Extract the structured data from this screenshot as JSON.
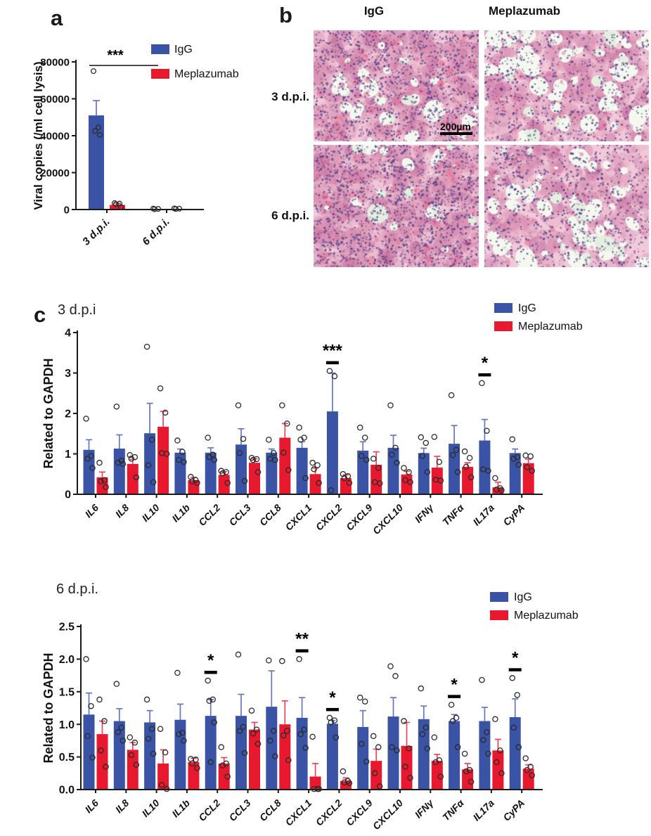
{
  "panels": {
    "a": {
      "label": "a"
    },
    "b": {
      "label": "b",
      "col_headers": [
        "IgG",
        "Meplazumab"
      ],
      "row_labels": [
        "3 d.p.i.",
        "6 d.p.i."
      ],
      "scale_bar_label": "200µm",
      "images": [
        {
          "group": "IgG",
          "timepoint": "3 d.p.i."
        },
        {
          "group": "Meplazumab",
          "timepoint": "3 d.p.i."
        },
        {
          "group": "IgG",
          "timepoint": "6 d.p.i."
        },
        {
          "group": "Meplazumab",
          "timepoint": "6 d.p.i."
        }
      ]
    },
    "c": {
      "label": "c"
    }
  },
  "colors": {
    "igg": "#3a53a4",
    "meplazumab": "#e8192e",
    "igg_error": "#6576c4",
    "meplazumab_error": "#f0435a",
    "axis": "#1a1a1a",
    "point_stroke": "#2b2b2b",
    "histology": {
      "base": "#f2c9d8",
      "white": "#f4f8ef",
      "mint": "#e4efdf",
      "pink": "#db8fb0",
      "deep_pink": "#c2679c",
      "nuclei": "#5a4488",
      "red": "#e86a92"
    }
  },
  "chart_data": [
    {
      "id": "chart-a",
      "type": "bar",
      "title": "",
      "xlabel": "",
      "ylabel": "Viral copies (/ml cell lysis)",
      "ylim": [
        0,
        80000
      ],
      "yticks": [
        0,
        20000,
        40000,
        60000,
        80000
      ],
      "ytick_labels": [
        "0",
        "20000",
        "40000",
        "60000",
        "80000"
      ],
      "grid": false,
      "legend_position": "top-right",
      "categories": [
        "3 d.p.i.",
        "6 d.p.i."
      ],
      "series": [
        {
          "name": "IgG",
          "color": "#3a53a4",
          "error_color": "#6576c4",
          "values": [
            51000,
            350
          ],
          "errors": [
            8000,
            150
          ],
          "points": [
            [
              75000,
              44500,
              42500,
              40500
            ],
            [
              500,
              350,
              200
            ]
          ]
        },
        {
          "name": "Meplazumab",
          "color": "#e8192e",
          "error_color": "#f0435a",
          "values": [
            2500,
            400
          ],
          "errors": [
            900,
            200
          ],
          "points": [
            [
              3500,
              3200,
              2900,
              1400
            ],
            [
              600,
              450,
              300
            ]
          ]
        }
      ],
      "significance": [
        {
          "category": "3 d.p.i.",
          "label": "***",
          "style": "pair-line"
        }
      ]
    },
    {
      "id": "chart-c1",
      "type": "bar",
      "title": "3 d.p.i",
      "xlabel": "",
      "ylabel": "Related to GAPDH",
      "ylim": [
        0,
        4
      ],
      "yticks": [
        0,
        1,
        2,
        3,
        4
      ],
      "ytick_labels": [
        "0",
        "1",
        "2",
        "3",
        "4"
      ],
      "grid": false,
      "legend_position": "top-right",
      "categories": [
        "IL6",
        "IL8",
        "IL10",
        "IL1b",
        "CCL2",
        "CCL3",
        "CCL8",
        "CXCL1",
        "CXCL2",
        "CXCL9",
        "CXCL10",
        "IFNγ",
        "TNFα",
        "IL17a",
        "CyPA"
      ],
      "series": [
        {
          "name": "IgG",
          "color": "#3a53a4",
          "error_color": "#6576c4",
          "values": [
            1.1,
            1.13,
            1.51,
            1.03,
            1.03,
            1.23,
            1.03,
            1.15,
            2.05,
            1.08,
            1.15,
            1.02,
            1.25,
            1.33,
            1.02
          ],
          "errors": [
            0.25,
            0.34,
            0.74,
            0.09,
            0.12,
            0.39,
            0.09,
            0.15,
            0.95,
            0.22,
            0.31,
            0.12,
            0.45,
            0.52,
            0.1
          ],
          "points": [
            [
              1.87,
              0.95,
              0.88,
              0.65
            ],
            [
              2.17,
              0.83,
              0.78,
              0.75
            ],
            [
              3.65,
              1.35,
              0.72,
              0.3
            ],
            [
              1.33,
              1.05,
              0.85,
              0.8
            ],
            [
              1.4,
              0.98,
              0.92,
              0.85
            ],
            [
              2.2,
              1.37,
              1.02,
              0.33
            ],
            [
              1.35,
              1.02,
              0.88,
              0.85
            ],
            [
              1.65,
              1.4,
              1.35,
              0.4
            ],
            [
              3.05,
              2.92,
              0.1
            ],
            [
              1.65,
              1.4,
              0.95,
              0.85
            ],
            [
              2.2,
              1.15,
              0.98,
              0.78
            ],
            [
              1.41,
              1.27,
              0.95,
              0.55
            ],
            [
              2.45,
              1.1,
              0.97,
              0.55
            ],
            [
              2.75,
              1.57,
              0.62,
              0.58
            ],
            [
              1.36,
              0.92,
              0.88,
              0.73
            ]
          ]
        },
        {
          "name": "Meplazumab",
          "color": "#e8192e",
          "error_color": "#f0435a",
          "values": [
            0.42,
            0.75,
            1.67,
            0.35,
            0.48,
            0.78,
            1.4,
            0.5,
            0.4,
            0.73,
            0.49,
            0.66,
            0.68,
            0.17,
            0.77
          ],
          "errors": [
            0.13,
            0.11,
            0.38,
            0.07,
            0.08,
            0.1,
            0.35,
            0.15,
            0.08,
            0.32,
            0.08,
            0.28,
            0.1,
            0.13,
            0.1
          ],
          "points": [
            [
              0.78,
              0.35,
              0.32,
              0.18
            ],
            [
              0.97,
              0.92,
              0.88,
              0.42
            ],
            [
              2.62,
              2.02,
              1.02,
              1.0
            ],
            [
              0.43,
              0.35,
              0.32,
              0.28
            ],
            [
              0.58,
              0.55,
              0.52,
              0.28
            ],
            [
              0.9,
              0.87,
              0.85,
              0.55
            ],
            [
              2.2,
              1.75,
              1.03,
              0.6
            ],
            [
              0.78,
              0.72,
              0.62,
              0.28
            ],
            [
              0.5,
              0.45,
              0.4,
              0.28
            ],
            [
              0.88,
              0.65,
              0.3,
              0.27
            ],
            [
              0.65,
              0.55,
              0.35,
              0.3
            ],
            [
              1.42,
              0.8,
              0.36,
              0.34
            ],
            [
              1.06,
              0.9,
              0.68,
              0.42
            ],
            [
              0.4,
              0.15,
              0.12,
              0.1
            ],
            [
              0.96,
              0.94,
              0.67,
              0.58
            ]
          ]
        }
      ],
      "significance": [
        {
          "category": "CXCL2",
          "label": "***",
          "style": "dash"
        },
        {
          "category": "IL17a",
          "label": "*",
          "style": "dash"
        }
      ]
    },
    {
      "id": "chart-c2",
      "type": "bar",
      "title": "6 d.p.i.",
      "xlabel": "",
      "ylabel": "Related to GAPDH",
      "ylim": [
        0,
        2.5
      ],
      "yticks": [
        0,
        0.5,
        1.0,
        1.5,
        2.0,
        2.5
      ],
      "ytick_labels": [
        "0.0",
        "0.5",
        "1.0",
        "1.5",
        "2.0",
        "2.5"
      ],
      "grid": false,
      "legend_position": "top-right",
      "categories": [
        "IL6",
        "IL8",
        "IL10",
        "IL1b",
        "CCL2",
        "CCL3",
        "CCL8",
        "CXCL1",
        "CXCL2",
        "CXCL9",
        "CXCL10",
        "IFNγ",
        "TNFα",
        "IL17a",
        "CyPA"
      ],
      "series": [
        {
          "name": "IgG",
          "color": "#3a53a4",
          "error_color": "#6576c4",
          "values": [
            1.15,
            1.05,
            1.03,
            1.07,
            1.13,
            1.13,
            1.27,
            1.1,
            1.01,
            0.96,
            1.12,
            1.08,
            1.05,
            1.05,
            1.11
          ],
          "errors": [
            0.33,
            0.19,
            0.18,
            0.24,
            0.25,
            0.33,
            0.55,
            0.31,
            0.05,
            0.25,
            0.29,
            0.2,
            0.1,
            0.21,
            0.28
          ],
          "points": [
            [
              2.0,
              1.28,
              0.82,
              0.49
            ],
            [
              1.62,
              0.95,
              0.88,
              0.75
            ],
            [
              1.38,
              0.93,
              0.78,
              0.55
            ],
            [
              1.79,
              0.87,
              0.85,
              0.75
            ],
            [
              1.67,
              1.38,
              1.36,
              1.03,
              0.42
            ],
            [
              2.07,
              0.96,
              0.9,
              0.56
            ],
            [
              1.98,
              0.9,
              0.75,
              0.51
            ],
            [
              2.0,
              0.92,
              0.85,
              0.64
            ],
            [
              1.1,
              1.06,
              1.03,
              0.8
            ],
            [
              1.41,
              1.35,
              0.7,
              0.43
            ],
            [
              1.89,
              1.74,
              0.65,
              0.6
            ],
            [
              1.55,
              0.95,
              0.85,
              0.63
            ],
            [
              1.3,
              1.1,
              1.05,
              0.65
            ],
            [
              1.68,
              0.88,
              0.76,
              0.55
            ],
            [
              1.71,
              1.45,
              0.95,
              0.65
            ]
          ]
        },
        {
          "name": "Meplazumab",
          "color": "#e8192e",
          "error_color": "#f0435a",
          "values": [
            0.85,
            0.61,
            0.4,
            0.42,
            0.4,
            0.92,
            1.0,
            0.2,
            0.13,
            0.44,
            0.67,
            0.44,
            0.31,
            0.6,
            0.32
          ],
          "errors": [
            0.2,
            0.11,
            0.21,
            0.06,
            0.09,
            0.11,
            0.36,
            0.2,
            0.05,
            0.18,
            0.36,
            0.1,
            0.09,
            0.17,
            0.06
          ],
          "points": [
            [
              1.38,
              1.05,
              0.6,
              0.35
            ],
            [
              0.8,
              0.72,
              0.53,
              0.38
            ],
            [
              0.93,
              0.57,
              0.07,
              0.01
            ],
            [
              0.47,
              0.46,
              0.4,
              0.33
            ],
            [
              0.65,
              0.4,
              0.37,
              0.2
            ],
            [
              1.21,
              0.92,
              0.86,
              0.7
            ],
            [
              1.97,
              0.9,
              0.83,
              0.45
            ],
            [
              0.81,
              0.01,
              0.01,
              0.01
            ],
            [
              0.28,
              0.13,
              0.11,
              0.1
            ],
            [
              0.82,
              0.65,
              0.25,
              0.05
            ],
            [
              1.05,
              0.63,
              0.35,
              0.18
            ],
            [
              0.8,
              0.45,
              0.42,
              0.2
            ],
            [
              0.55,
              0.3,
              0.28,
              0.12
            ],
            [
              1.08,
              0.6,
              0.42,
              0.25
            ],
            [
              0.48,
              0.35,
              0.3,
              0.22
            ]
          ]
        }
      ],
      "significance": [
        {
          "category": "CCL2",
          "label": "*",
          "style": "dash"
        },
        {
          "category": "CXCL1",
          "label": "**",
          "style": "dash"
        },
        {
          "category": "CXCL2",
          "label": "*",
          "style": "dash"
        },
        {
          "category": "TNFα",
          "label": "*",
          "style": "dash"
        },
        {
          "category": "CyPA",
          "label": "*",
          "style": "dash"
        }
      ]
    }
  ]
}
